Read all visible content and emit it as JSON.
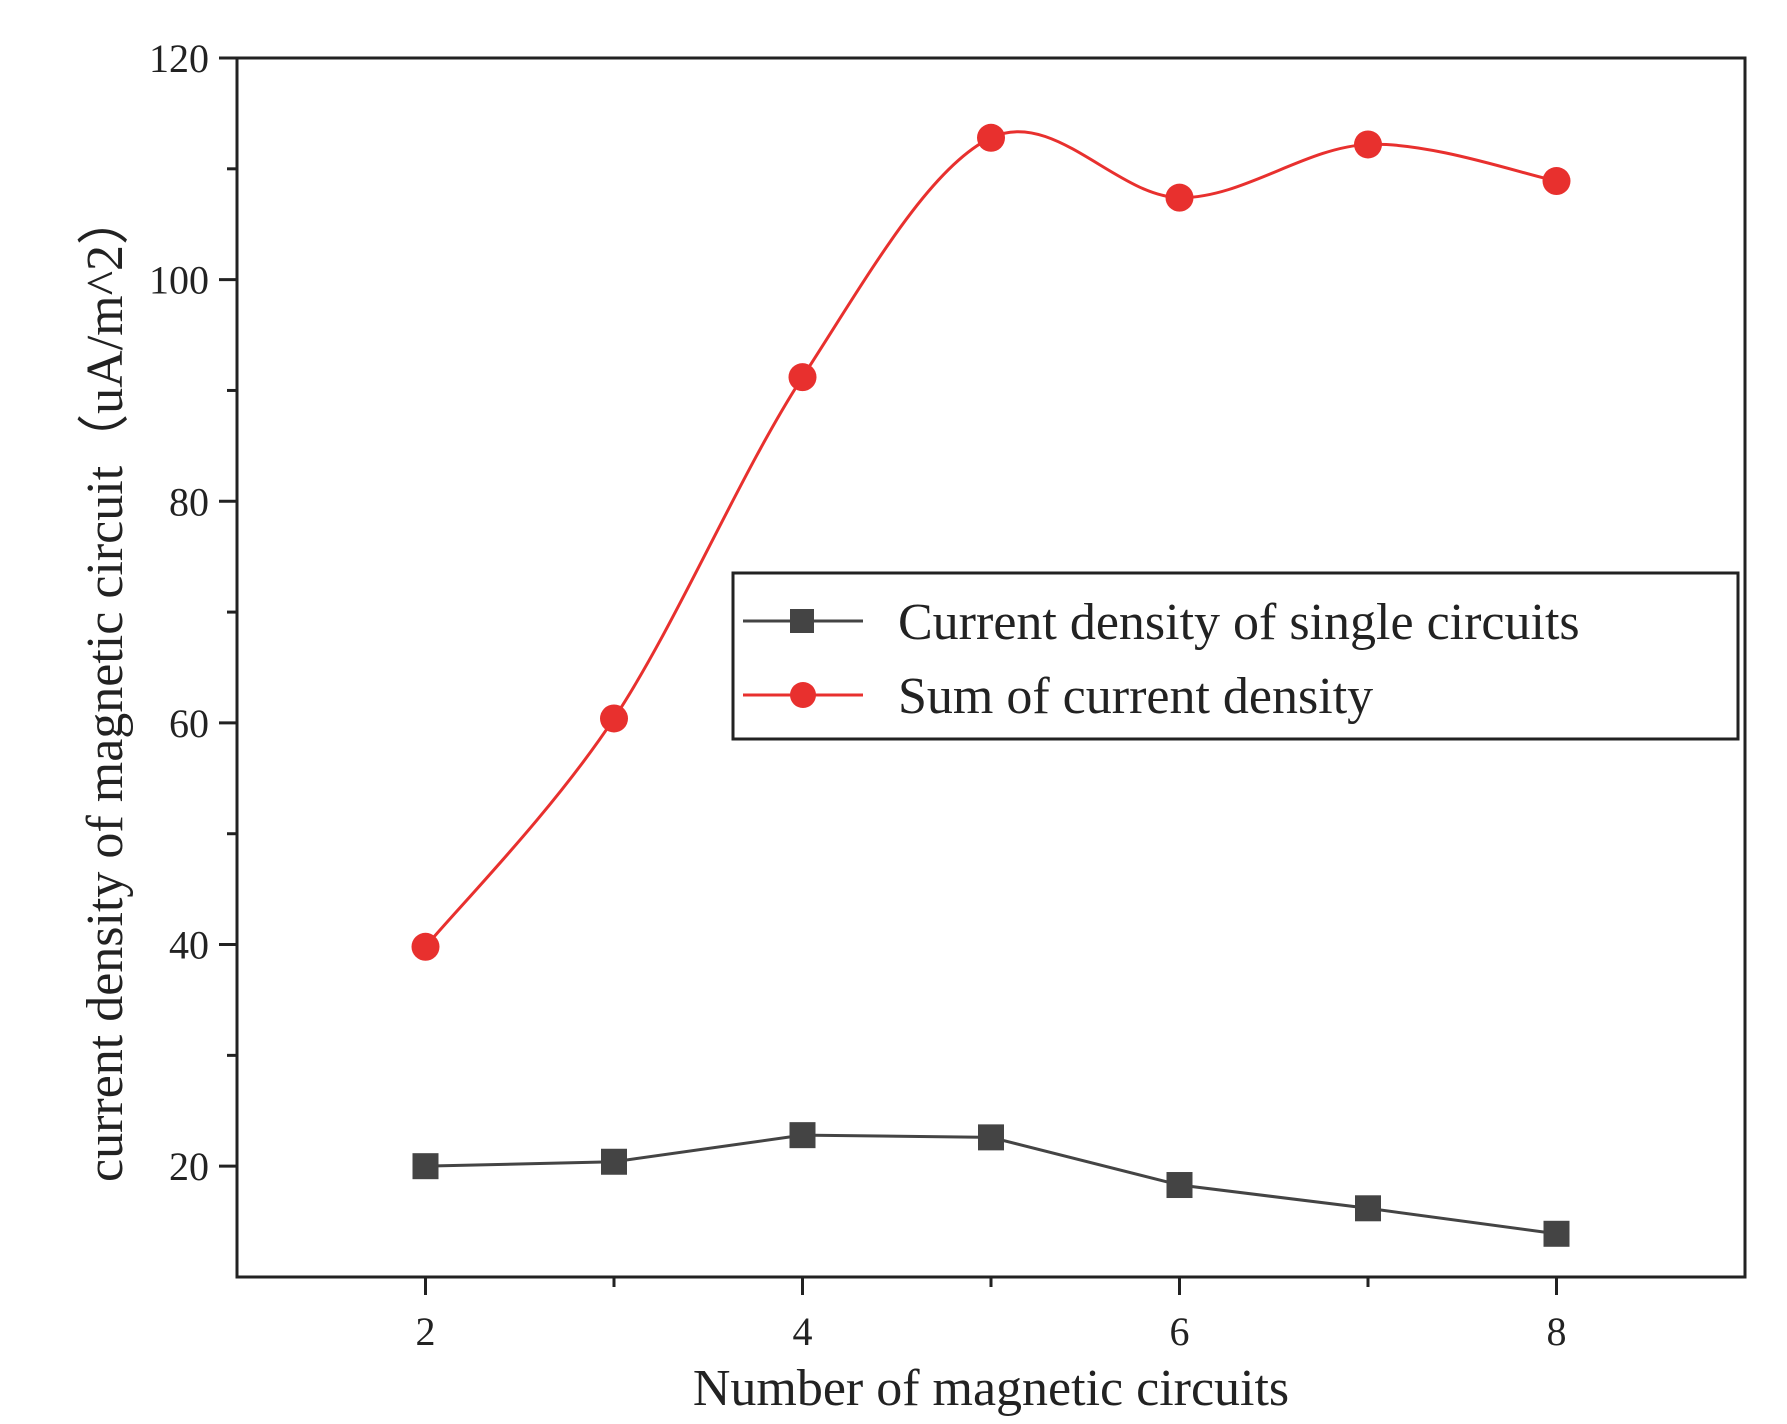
{
  "chart_data": {
    "type": "line",
    "title": "",
    "xlabel": "Number of magnetic circuits",
    "ylabel": "current density of magnetic circuit（uA/m^2）",
    "xlim": [
      1,
      9
    ],
    "ylim": [
      10,
      120
    ],
    "x_ticks": [
      2,
      4,
      6,
      8
    ],
    "x_tick_labels": [
      "2",
      "4",
      "6",
      "8"
    ],
    "y_ticks": [
      20,
      40,
      60,
      80,
      100,
      120
    ],
    "y_tick_labels": [
      "20",
      "40",
      "60",
      "80",
      "100",
      "120"
    ],
    "grid": false,
    "legend_position": "right, middle",
    "x": [
      2,
      3,
      4,
      5,
      6,
      7,
      8
    ],
    "series": [
      {
        "name": "Current density of single circuits",
        "marker": "square",
        "color": "#444444",
        "values": [
          20.0,
          20.4,
          22.8,
          22.6,
          18.3,
          16.2,
          13.9
        ],
        "smooth": false
      },
      {
        "name": "Sum of current density",
        "marker": "circle",
        "color": "#e8302e",
        "values": [
          39.8,
          60.4,
          91.2,
          112.8,
          107.4,
          112.2,
          108.9
        ],
        "smooth": true
      }
    ]
  }
}
